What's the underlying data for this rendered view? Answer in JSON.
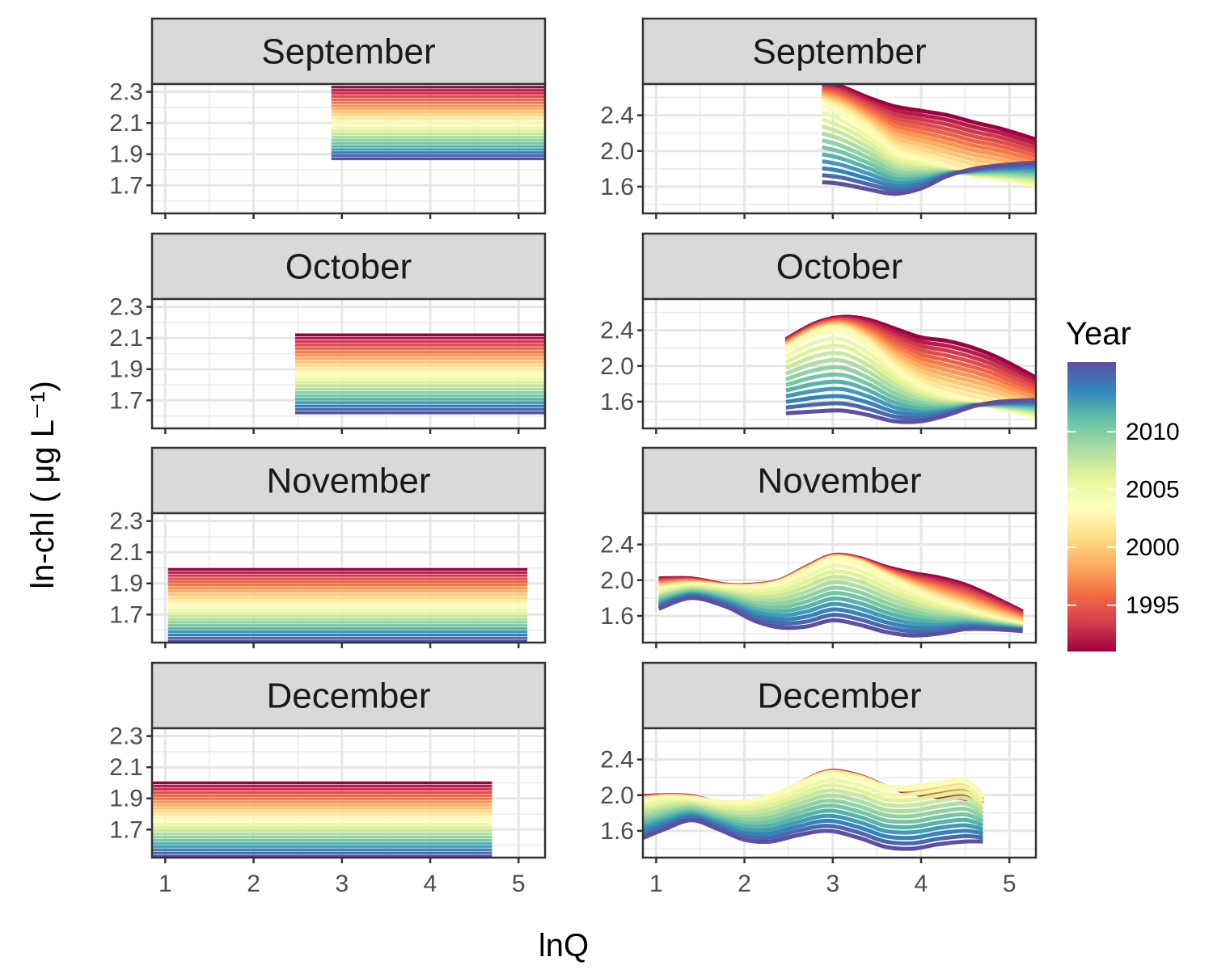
{
  "chart_data": {
    "type": "line",
    "xlabel": "lnQ",
    "ylabel": "ln-chl ( μg L⁻¹)",
    "legend": {
      "title": "Year",
      "placement": "right",
      "range": [
        1991,
        2016
      ],
      "labels": [
        "1995",
        "2000",
        "2005",
        "2010"
      ],
      "label_values": [
        1995,
        2000,
        2005,
        2010
      ],
      "palette": [
        "#9E0142",
        "#D53E4F",
        "#F46D43",
        "#FDAE61",
        "#FEE08B",
        "#FFFFBF",
        "#E6F598",
        "#ABDDA4",
        "#66C2A5",
        "#3288BD",
        "#5E4FA2"
      ]
    },
    "panels": [
      {
        "column": "left",
        "month": "September",
        "xlim": [
          0.85,
          5.3
        ],
        "ylim": [
          1.52,
          2.35
        ],
        "xticks": [
          1,
          2,
          3,
          4,
          5
        ],
        "yticks": [
          1.7,
          1.9,
          2.1,
          2.3
        ],
        "x_range": [
          2.88,
          5.3
        ],
        "mode": "flat",
        "y_top": 2.33,
        "y_bottom": 1.87
      },
      {
        "column": "left",
        "month": "October",
        "xlim": [
          0.85,
          5.3
        ],
        "ylim": [
          1.52,
          2.35
        ],
        "xticks": [
          1,
          2,
          3,
          4,
          5
        ],
        "yticks": [
          1.7,
          1.9,
          2.1,
          2.3
        ],
        "x_range": [
          2.47,
          5.3
        ],
        "mode": "flat",
        "y_top": 2.12,
        "y_bottom": 1.62
      },
      {
        "column": "left",
        "month": "November",
        "xlim": [
          0.85,
          5.3
        ],
        "ylim": [
          1.52,
          2.35
        ],
        "xticks": [
          1,
          2,
          3,
          4,
          5
        ],
        "yticks": [
          1.7,
          1.9,
          2.1,
          2.3
        ],
        "x_range": [
          1.03,
          5.1
        ],
        "mode": "flat",
        "y_top": 1.99,
        "y_bottom": 1.53
      },
      {
        "column": "left",
        "month": "December",
        "xlim": [
          0.85,
          5.3
        ],
        "ylim": [
          1.52,
          2.35
        ],
        "xticks": [
          1,
          2,
          3,
          4,
          5
        ],
        "yticks": [
          1.7,
          1.9,
          2.1,
          2.3
        ],
        "x_range": [
          0.85,
          4.7
        ],
        "mode": "flat",
        "y_top": 2.0,
        "y_bottom": 1.53
      },
      {
        "column": "right",
        "month": "September",
        "xlim": [
          0.85,
          5.3
        ],
        "ylim": [
          1.3,
          2.75
        ],
        "xticks": [
          1,
          2,
          3,
          4,
          5
        ],
        "yticks": [
          1.6,
          2.0,
          2.4
        ],
        "x": [
          2.88,
          3.1,
          3.4,
          3.7,
          4.0,
          4.3,
          4.6,
          4.9,
          5.3
        ],
        "first": [
          2.75,
          2.72,
          2.6,
          2.5,
          2.45,
          2.4,
          2.32,
          2.25,
          2.13
        ],
        "mid": [
          2.55,
          2.45,
          2.25,
          2.0,
          1.9,
          1.8,
          1.72,
          1.68,
          1.6
        ],
        "last": [
          1.65,
          1.63,
          1.57,
          1.52,
          1.58,
          1.72,
          1.8,
          1.84,
          1.87
        ],
        "mode": "curve"
      },
      {
        "column": "right",
        "month": "October",
        "xlim": [
          0.85,
          5.3
        ],
        "ylim": [
          1.3,
          2.75
        ],
        "xticks": [
          1,
          2,
          3,
          4,
          5
        ],
        "yticks": [
          1.6,
          2.0,
          2.4
        ],
        "x": [
          2.47,
          2.8,
          3.1,
          3.4,
          3.7,
          4.0,
          4.3,
          4.6,
          4.9,
          5.3
        ],
        "first": [
          2.3,
          2.48,
          2.55,
          2.52,
          2.42,
          2.32,
          2.28,
          2.2,
          2.08,
          1.87
        ],
        "mid": [
          2.2,
          2.38,
          2.42,
          2.25,
          1.98,
          1.78,
          1.65,
          1.58,
          1.52,
          1.43
        ],
        "last": [
          1.47,
          1.49,
          1.5,
          1.45,
          1.38,
          1.38,
          1.45,
          1.55,
          1.6,
          1.62
        ],
        "mode": "curve"
      },
      {
        "column": "right",
        "month": "November",
        "xlim": [
          0.85,
          5.3
        ],
        "ylim": [
          1.3,
          2.75
        ],
        "xticks": [
          1,
          2,
          3,
          4,
          5
        ],
        "yticks": [
          1.6,
          2.0,
          2.4
        ],
        "x": [
          1.03,
          1.4,
          1.8,
          2.1,
          2.4,
          2.7,
          3.0,
          3.3,
          3.6,
          3.9,
          4.2,
          4.5,
          4.8,
          5.15
        ],
        "first": [
          2.02,
          2.02,
          1.95,
          1.95,
          2.0,
          2.15,
          2.28,
          2.25,
          2.15,
          2.08,
          2.03,
          1.95,
          1.82,
          1.65
        ],
        "mid": [
          1.9,
          1.95,
          1.93,
          1.93,
          1.98,
          2.12,
          2.25,
          2.2,
          2.05,
          1.9,
          1.77,
          1.67,
          1.58,
          1.5
        ],
        "last": [
          1.68,
          1.8,
          1.7,
          1.55,
          1.47,
          1.48,
          1.55,
          1.5,
          1.42,
          1.38,
          1.4,
          1.45,
          1.45,
          1.43
        ],
        "mode": "curve"
      },
      {
        "column": "right",
        "month": "December",
        "xlim": [
          0.85,
          5.3
        ],
        "ylim": [
          1.3,
          2.75
        ],
        "xticks": [
          1,
          2,
          3,
          4,
          5
        ],
        "yticks": [
          1.6,
          2.0,
          2.4
        ],
        "x": [
          0.85,
          1.1,
          1.4,
          1.7,
          2.0,
          2.3,
          2.6,
          2.95,
          3.3,
          3.6,
          3.9,
          4.2,
          4.5,
          4.7
        ],
        "first": [
          1.99,
          2.0,
          1.99,
          1.92,
          1.9,
          1.98,
          2.12,
          2.27,
          2.22,
          2.1,
          2.02,
          1.98,
          1.96,
          1.9
        ],
        "mid": [
          1.95,
          1.98,
          1.97,
          1.93,
          1.93,
          2.0,
          2.12,
          2.25,
          2.2,
          2.1,
          2.1,
          2.15,
          2.18,
          2.0
        ],
        "last": [
          1.52,
          1.62,
          1.72,
          1.62,
          1.5,
          1.48,
          1.55,
          1.6,
          1.52,
          1.42,
          1.4,
          1.45,
          1.48,
          1.48
        ],
        "mode": "curve"
      }
    ]
  }
}
